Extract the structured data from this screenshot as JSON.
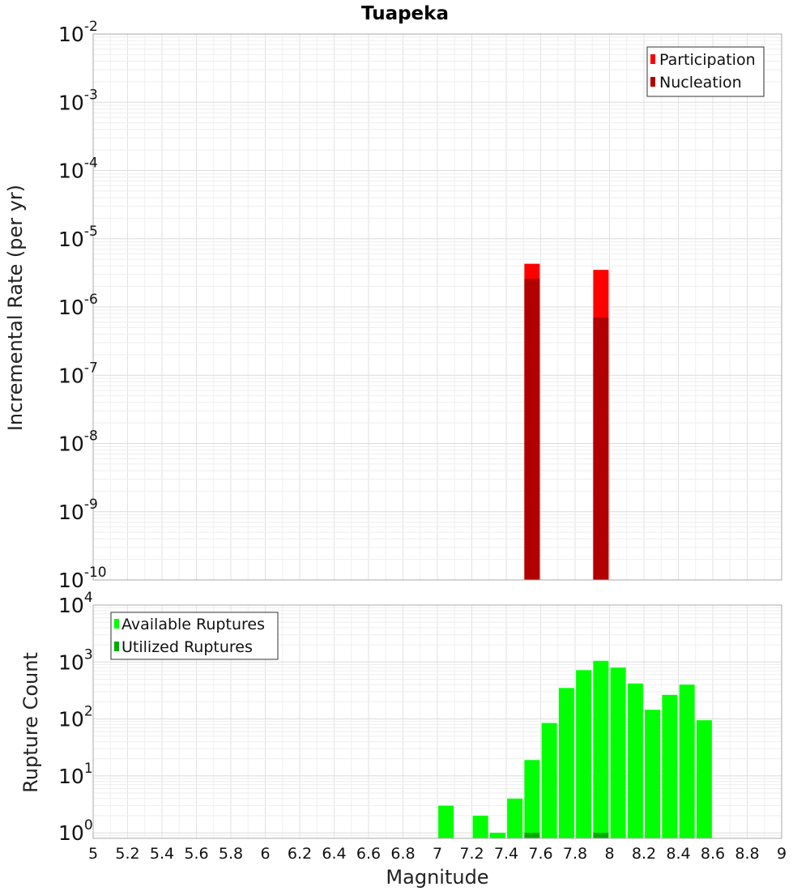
{
  "chart_data": [
    {
      "type": "bar",
      "title": "Tuapeka",
      "ylabel": "Incremental Rate (per yr)",
      "yscale": "log",
      "ylim": [
        1e-10,
        0.01
      ],
      "xlim": [
        5,
        9
      ],
      "grid": true,
      "legend_position": "top-right",
      "legend": [
        {
          "name": "Participation",
          "color": "#ff0000"
        },
        {
          "name": "Nucleation",
          "color": "#b00000"
        }
      ],
      "series": [
        {
          "name": "Participation",
          "color": "#ff0000",
          "x": [
            7.55,
            7.95
          ],
          "values": [
            4.3e-06,
            3.5e-06
          ]
        },
        {
          "name": "Nucleation",
          "color": "#b00000",
          "x": [
            7.55,
            7.95
          ],
          "values": [
            2.6e-06,
            7e-07
          ]
        }
      ],
      "y_ticks": [
        {
          "base": "10",
          "exp": "-10",
          "value": 1e-10
        },
        {
          "base": "10",
          "exp": "-9",
          "value": 1e-09
        },
        {
          "base": "10",
          "exp": "-8",
          "value": 1e-08
        },
        {
          "base": "10",
          "exp": "-7",
          "value": 1e-07
        },
        {
          "base": "10",
          "exp": "-6",
          "value": 1e-06
        },
        {
          "base": "10",
          "exp": "-5",
          "value": 1e-05
        },
        {
          "base": "10",
          "exp": "-4",
          "value": 0.0001
        },
        {
          "base": "10",
          "exp": "-3",
          "value": 0.001
        },
        {
          "base": "10",
          "exp": "-2",
          "value": 0.01
        }
      ]
    },
    {
      "type": "bar",
      "xlabel": "Magnitude",
      "ylabel": "Rupture Count",
      "yscale": "log",
      "ylim": [
        0.8,
        10000
      ],
      "xlim": [
        5,
        9
      ],
      "grid": true,
      "legend_position": "top-left",
      "legend": [
        {
          "name": "Available Ruptures",
          "color": "#00ff00"
        },
        {
          "name": "Utilized Ruptures",
          "color": "#00aa00"
        }
      ],
      "series": [
        {
          "name": "Available Ruptures",
          "color": "#00ff00",
          "x": [
            7.05,
            7.25,
            7.35,
            7.45,
            7.55,
            7.65,
            7.75,
            7.85,
            7.95,
            8.05,
            8.15,
            8.25,
            8.35,
            8.45,
            8.55
          ],
          "values": [
            3,
            2,
            1,
            4,
            19,
            85,
            350,
            720,
            1050,
            800,
            420,
            145,
            265,
            400,
            95
          ]
        },
        {
          "name": "Utilized Ruptures",
          "color": "#00aa00",
          "x": [
            7.55,
            7.95
          ],
          "values": [
            1,
            1
          ]
        }
      ],
      "x_ticks": [
        "5",
        "5.2",
        "5.4",
        "5.6",
        "5.8",
        "6",
        "6.2",
        "6.4",
        "6.6",
        "6.8",
        "7",
        "7.2",
        "7.4",
        "7.6",
        "7.8",
        "8",
        "8.2",
        "8.4",
        "8.6",
        "8.8",
        "9"
      ],
      "y_ticks": [
        {
          "base": "10",
          "exp": "0",
          "value": 1
        },
        {
          "base": "10",
          "exp": "1",
          "value": 10
        },
        {
          "base": "10",
          "exp": "2",
          "value": 100
        },
        {
          "base": "10",
          "exp": "3",
          "value": 1000
        },
        {
          "base": "10",
          "exp": "4",
          "value": 10000
        }
      ]
    }
  ]
}
